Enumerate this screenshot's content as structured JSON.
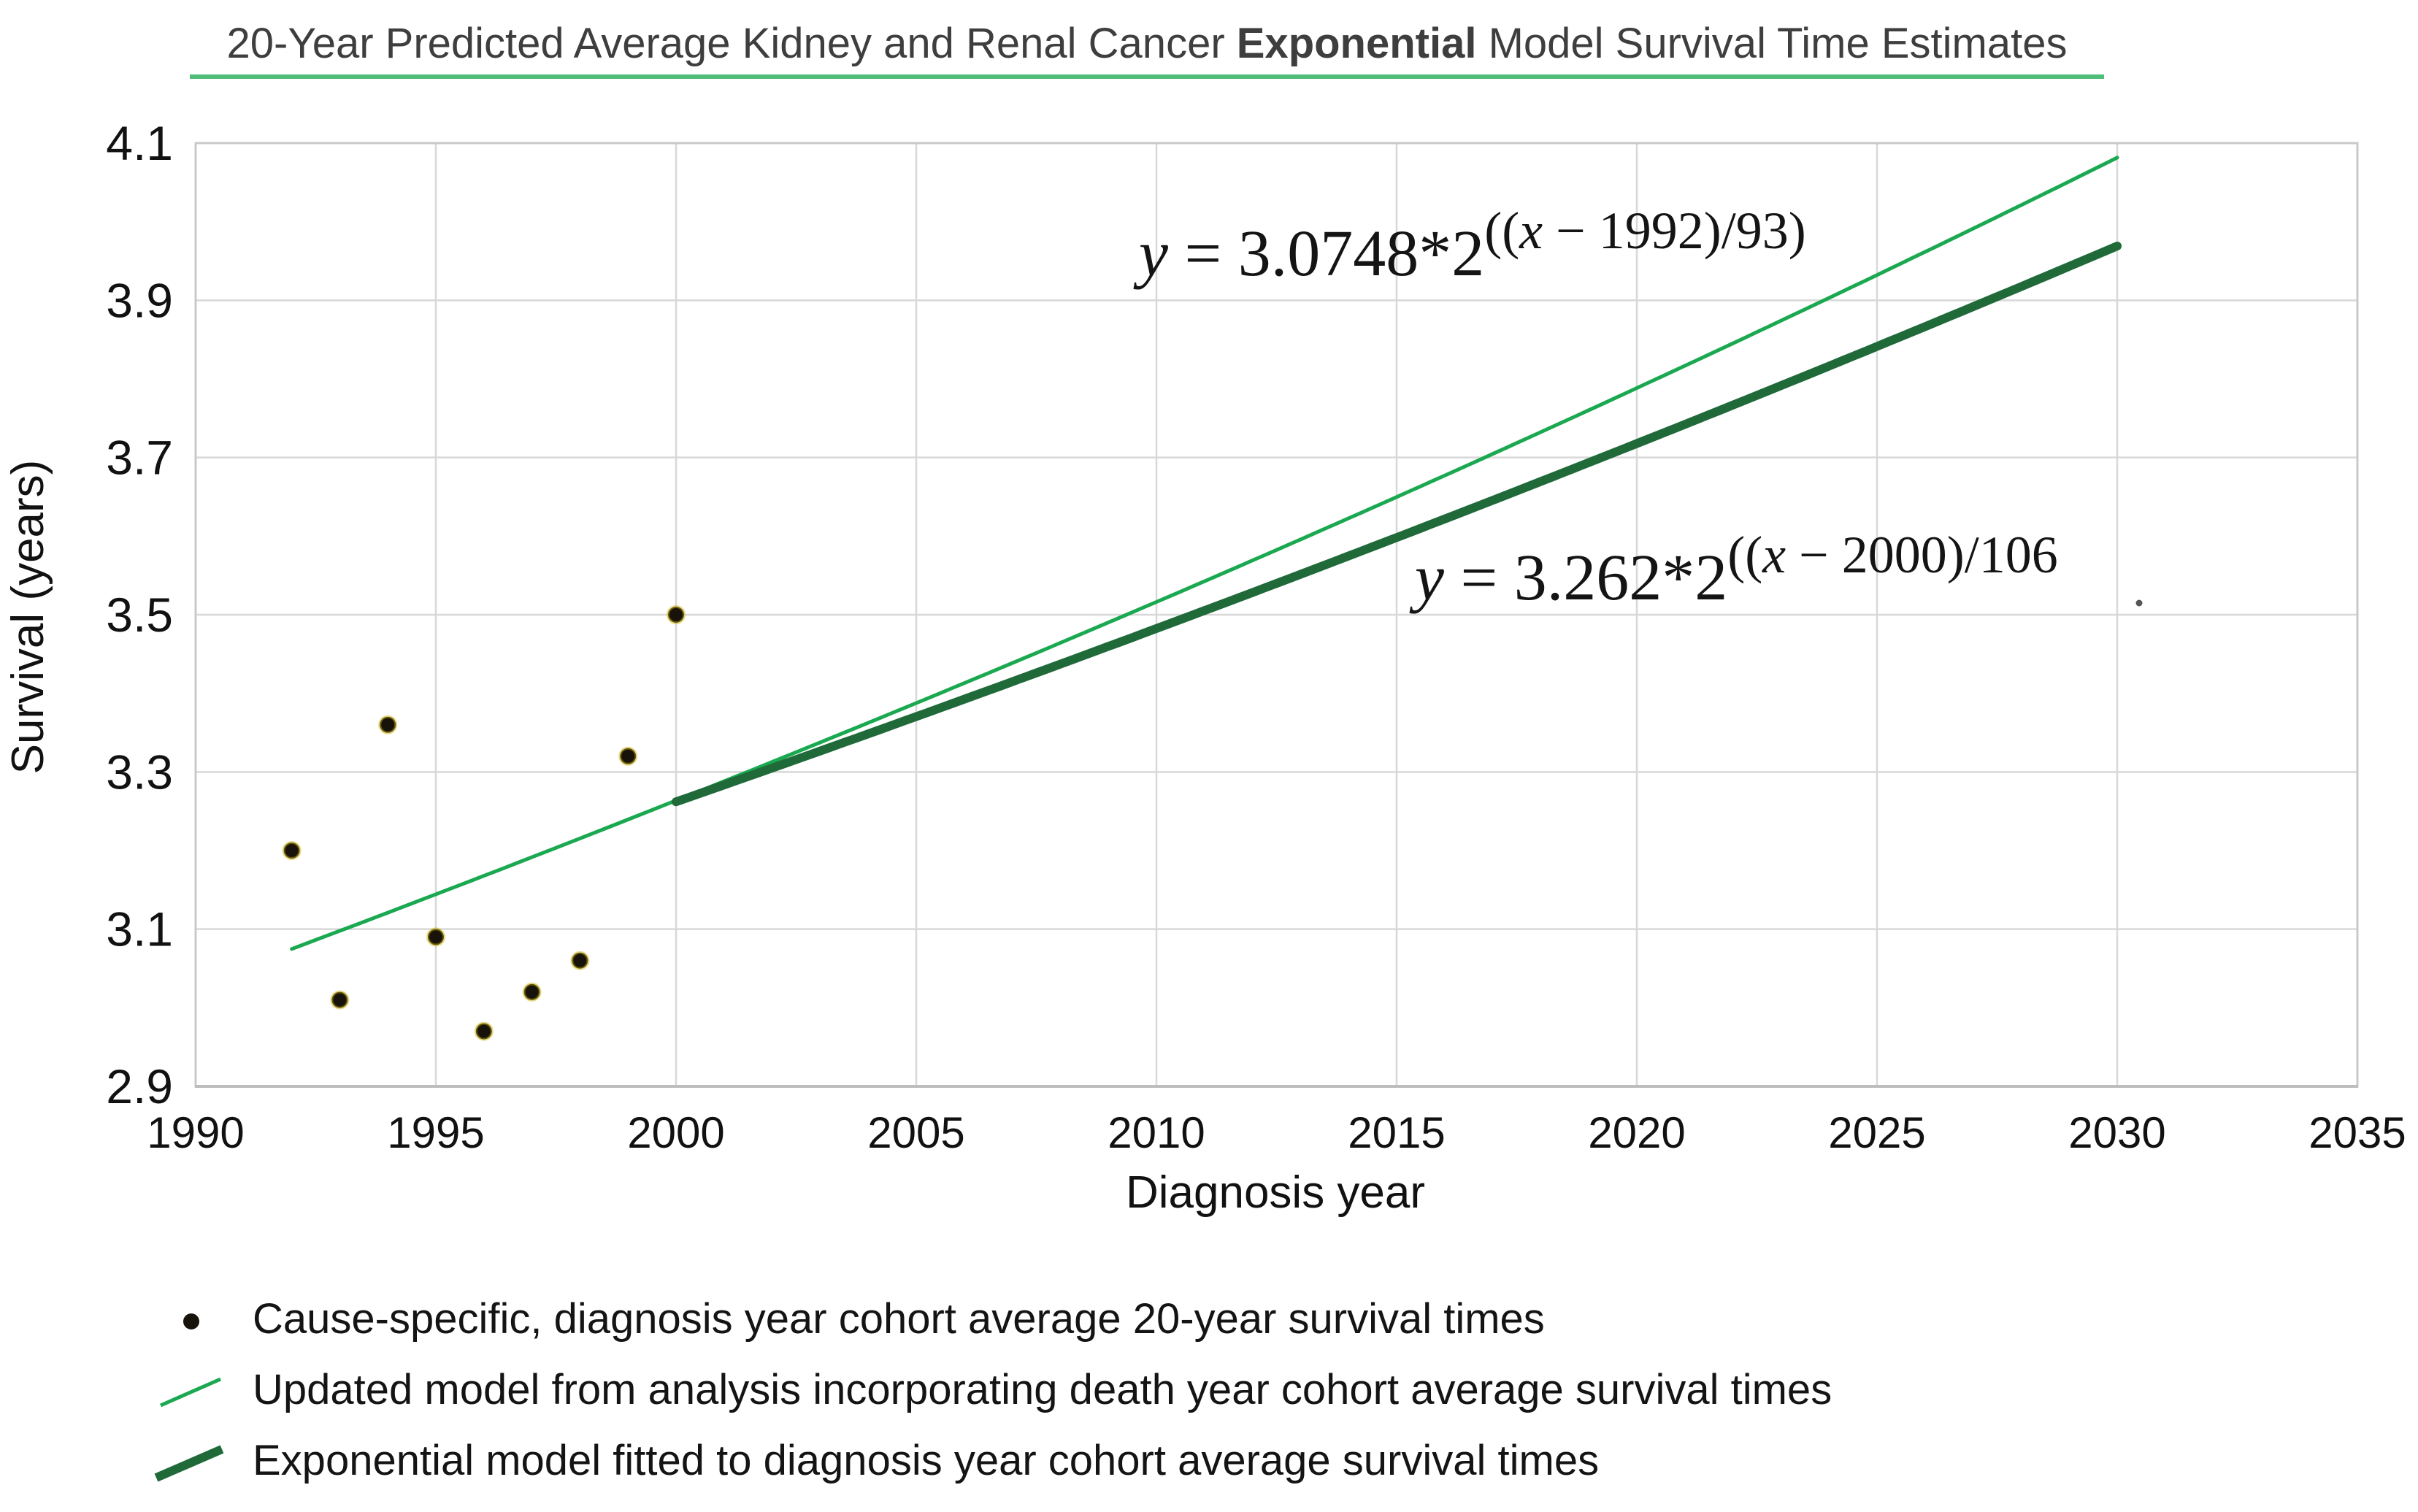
{
  "title": {
    "prefix": "20-Year Predicted Average Kidney and Renal Cancer ",
    "bold_word": "Exponential",
    "suffix": " Model Survival Time Estimates"
  },
  "axes": {
    "x_title": "Diagnosis year",
    "y_title": "Survival (years)"
  },
  "equations": {
    "updated_model": {
      "lhs": "y",
      "mid": " = 3.0748*2",
      "exp_open": "((",
      "exp_var": "x",
      "exp_rest": " − 1992)/93)"
    },
    "diagnosis_model": {
      "lhs": "y",
      "mid": " = 3.262*2",
      "exp_open": "((",
      "exp_var": "x",
      "exp_rest": " − 2000)/106"
    }
  },
  "legend": {
    "items": [
      {
        "marker": "black-dot",
        "label": "Cause-specific, diagnosis year cohort average 20-year survival times"
      },
      {
        "marker": "thin-green-line",
        "label": "Updated model from analysis incorporating death year cohort average survival times"
      },
      {
        "marker": "thick-dark-green-line",
        "label": "Exponential model fitted to diagnosis year cohort average survival times"
      }
    ]
  },
  "palette": {
    "title_text": "#3e3e3e",
    "title_underline": "#50be78",
    "grid": "#d8d8d8",
    "axis_border": "#c9c9c9",
    "axis_bottom": "#bdbdbd",
    "text": "#111111"
  },
  "chart_data": {
    "type": "scatter",
    "title": "20-Year Predicted Average Kidney and Renal Cancer Exponential Model Survival Time Estimates",
    "xlabel": "Diagnosis year",
    "ylabel": "Survival (years)",
    "xlim": [
      1990,
      2035
    ],
    "ylim": [
      2.9,
      4.1
    ],
    "grid": true,
    "legend_position": "bottom-left",
    "x_ticks": [
      1990,
      1995,
      2000,
      2005,
      2010,
      2015,
      2020,
      2025,
      2030,
      2035
    ],
    "x_tick_labels": [
      "1990",
      "1995",
      "2000",
      "2005",
      "2010",
      "2015",
      "2020",
      "2025",
      "2030",
      "2035"
    ],
    "y_ticks": [
      2.9,
      3.1,
      3.3,
      3.5,
      3.7,
      3.9,
      4.1
    ],
    "y_tick_labels": [
      "2.9",
      "3.1",
      "3.3",
      "3.5",
      "3.7",
      "3.9",
      "4.1"
    ],
    "points": {
      "label": "Cause-specific, diagnosis year cohort average 20-year survival times",
      "x": [
        1992,
        1993,
        1994,
        1995,
        1996,
        1997,
        1998,
        1999,
        2000
      ],
      "y": [
        3.2,
        3.01,
        3.36,
        3.09,
        2.97,
        3.02,
        3.06,
        3.32,
        3.5
      ],
      "color": "#17120a",
      "halo_color": "#c7ae00"
    },
    "lines": [
      {
        "label": "Updated model from analysis incorporating death year cohort average survival times",
        "formula": "y = 3.0748*2^((x − 1992)/93)",
        "coef": 3.0748,
        "base_year": 1992,
        "doubling_divisor": 93,
        "x_start": 1992,
        "x_end": 2030,
        "color": "#1aa850",
        "stroke_width": 5
      },
      {
        "label": "Exponential model fitted to diagnosis year cohort average survival times",
        "formula": "y = 3.262*2^((x − 2000)/106)",
        "coef": 3.262,
        "base_year": 2000,
        "doubling_divisor": 106,
        "x_start": 2000,
        "x_end": 2030,
        "color": "#1f6a38",
        "stroke_width": 12
      }
    ]
  }
}
